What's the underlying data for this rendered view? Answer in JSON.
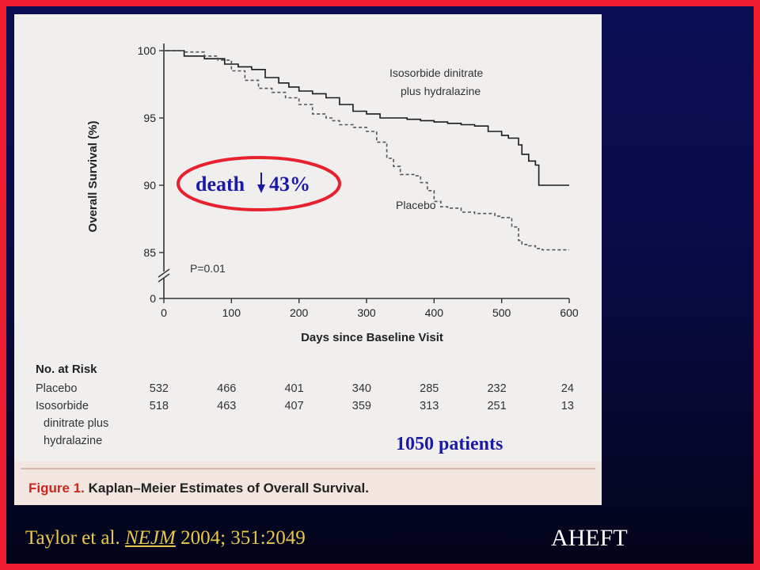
{
  "figure": {
    "caption_label": "Figure 1.",
    "caption_text": "Kaplan–Meier Estimates of Overall Survival."
  },
  "chart_data": {
    "type": "line",
    "title": "",
    "xlabel": "Days since Baseline Visit",
    "ylabel": "Overall Survival (%)",
    "xlim": [
      0,
      600
    ],
    "ylim": [
      85,
      100
    ],
    "y_axis_break": true,
    "x_ticks": [
      "0",
      "100",
      "200",
      "300",
      "400",
      "500",
      "600"
    ],
    "y_ticks": [
      "100",
      "95",
      "90",
      "85",
      "0"
    ],
    "series": [
      {
        "name": "Isosorbide dinitrate plus hydralazine",
        "label_lines": [
          "Isosorbide dinitrate",
          "plus hydralazine"
        ],
        "line_style": "solid",
        "color": "#1a1a1a",
        "points": [
          [
            0,
            100
          ],
          [
            30,
            99.6
          ],
          [
            60,
            99.4
          ],
          [
            90,
            99.0
          ],
          [
            110,
            98.8
          ],
          [
            130,
            98.6
          ],
          [
            150,
            98.0
          ],
          [
            170,
            97.6
          ],
          [
            185,
            97.3
          ],
          [
            200,
            97.0
          ],
          [
            220,
            96.8
          ],
          [
            240,
            96.5
          ],
          [
            260,
            96.0
          ],
          [
            280,
            95.5
          ],
          [
            300,
            95.3
          ],
          [
            320,
            95.0
          ],
          [
            340,
            95.0
          ],
          [
            360,
            94.9
          ],
          [
            380,
            94.8
          ],
          [
            400,
            94.7
          ],
          [
            420,
            94.6
          ],
          [
            440,
            94.5
          ],
          [
            460,
            94.4
          ],
          [
            480,
            94.0
          ],
          [
            500,
            93.7
          ],
          [
            510,
            93.5
          ],
          [
            525,
            93.0
          ],
          [
            530,
            92.3
          ],
          [
            540,
            91.8
          ],
          [
            550,
            91.5
          ],
          [
            555,
            90.0
          ],
          [
            600,
            90.0
          ]
        ]
      },
      {
        "name": "Placebo",
        "label_lines": [
          "Placebo"
        ],
        "line_style": "dashed",
        "color": "#555555",
        "points": [
          [
            0,
            100
          ],
          [
            30,
            99.9
          ],
          [
            60,
            99.6
          ],
          [
            80,
            99.3
          ],
          [
            100,
            98.5
          ],
          [
            120,
            97.8
          ],
          [
            140,
            97.2
          ],
          [
            160,
            96.9
          ],
          [
            180,
            96.5
          ],
          [
            200,
            96.0
          ],
          [
            220,
            95.3
          ],
          [
            240,
            95.0
          ],
          [
            250,
            94.8
          ],
          [
            260,
            94.5
          ],
          [
            280,
            94.3
          ],
          [
            300,
            94.0
          ],
          [
            315,
            93.2
          ],
          [
            330,
            92.0
          ],
          [
            340,
            91.4
          ],
          [
            350,
            90.8
          ],
          [
            370,
            90.7
          ],
          [
            380,
            90.2
          ],
          [
            390,
            89.6
          ],
          [
            400,
            88.8
          ],
          [
            410,
            88.4
          ],
          [
            420,
            88.3
          ],
          [
            440,
            88.0
          ],
          [
            460,
            87.9
          ],
          [
            490,
            87.7
          ],
          [
            500,
            87.6
          ],
          [
            515,
            86.9
          ],
          [
            525,
            85.9
          ],
          [
            530,
            85.6
          ],
          [
            540,
            85.5
          ],
          [
            550,
            85.3
          ],
          [
            560,
            85.2
          ],
          [
            600,
            85.2
          ]
        ]
      }
    ],
    "annotations": {
      "p_value": "P=0.01"
    },
    "risk_table": {
      "title": "No. at Risk",
      "times": [
        0,
        100,
        200,
        300,
        400,
        500,
        600
      ],
      "rows": [
        {
          "label_lines": [
            "Placebo"
          ],
          "values": [
            "532",
            "466",
            "401",
            "340",
            "285",
            "232",
            "24"
          ]
        },
        {
          "label_lines": [
            "Isosorbide",
            "dinitrate plus",
            "hydralazine"
          ],
          "values": [
            "518",
            "463",
            "407",
            "359",
            "313",
            "251",
            "13"
          ]
        }
      ]
    }
  },
  "overlay": {
    "death_word": "death",
    "death_pct": "43%",
    "patients": "1050 patients",
    "oval_color": "#e8212e",
    "text_color": "#1a1aa8"
  },
  "footer": {
    "citation_author": "Taylor et al. ",
    "citation_journal": "NEJM",
    "citation_ref": " 2004; 351:2049",
    "tag": "AHEFT",
    "citation_color": "#e8c94a"
  }
}
